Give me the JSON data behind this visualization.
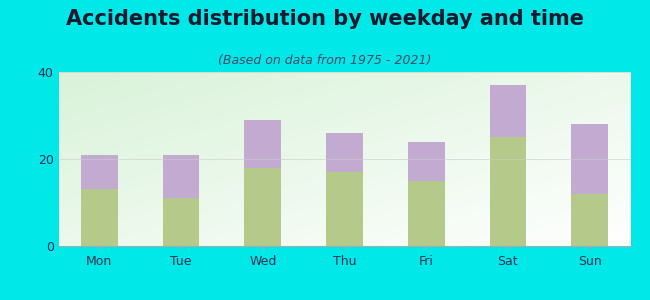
{
  "title": "Accidents distribution by weekday and time",
  "subtitle": "(Based on data from 1975 - 2021)",
  "categories": [
    "Mon",
    "Tue",
    "Wed",
    "Thu",
    "Fri",
    "Sat",
    "Sun"
  ],
  "pm_values": [
    13,
    11,
    18,
    17,
    15,
    25,
    12
  ],
  "am_values": [
    8,
    10,
    11,
    9,
    9,
    12,
    16
  ],
  "pm_color": "#b5c98a",
  "am_color": "#c3aad0",
  "background_color": "#00e8e8",
  "ylim": [
    0,
    40
  ],
  "yticks": [
    0,
    20,
    40
  ],
  "bar_width": 0.45,
  "title_fontsize": 15,
  "subtitle_fontsize": 9,
  "tick_fontsize": 9,
  "legend_fontsize": 9,
  "title_color": "#1a1a2e",
  "subtitle_color": "#4a4a6a",
  "tick_color": "#333355"
}
